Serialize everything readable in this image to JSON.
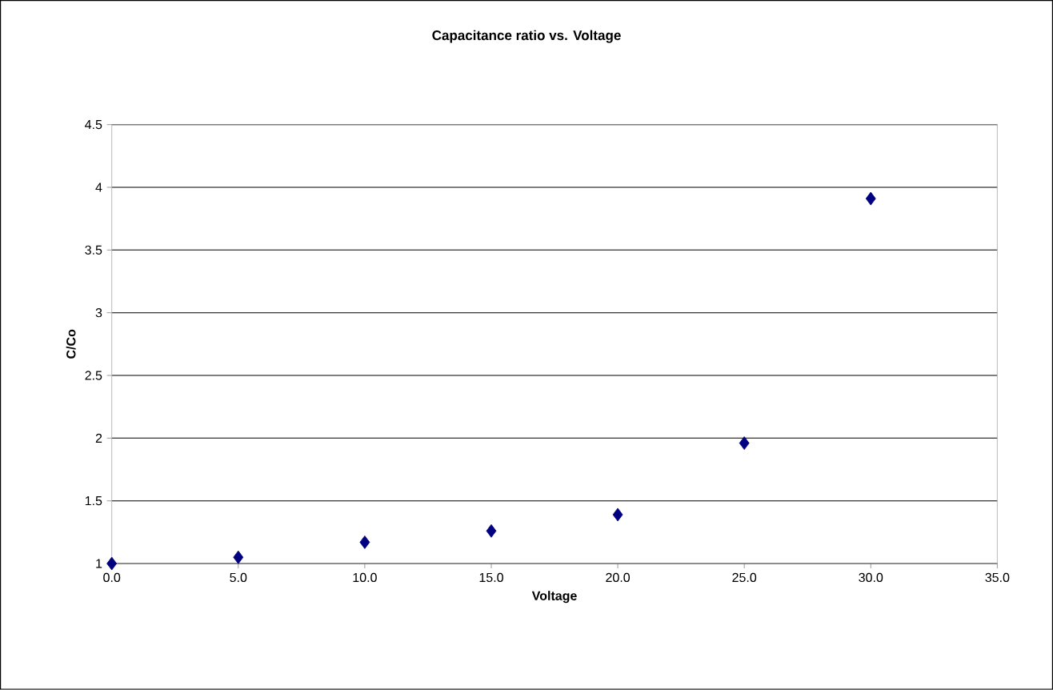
{
  "chart_data": {
    "type": "scatter",
    "title": "Capacitance ratio vs. Voltage",
    "xlabel": "Voltage",
    "ylabel": "C/Co",
    "x": [
      0,
      5,
      10,
      15,
      20,
      25,
      30
    ],
    "values": [
      1.0,
      1.05,
      1.17,
      1.26,
      1.39,
      1.96,
      3.91
    ],
    "color": "#000080",
    "marker": "diamond",
    "grid": "y",
    "xlim": [
      0,
      35
    ],
    "ylim": [
      1,
      4.5
    ],
    "xticks": [
      {
        "value": 0,
        "label": "0.0"
      },
      {
        "value": 5,
        "label": "5.0"
      },
      {
        "value": 10,
        "label": "10.0"
      },
      {
        "value": 15,
        "label": "15.0"
      },
      {
        "value": 20,
        "label": "20.0"
      },
      {
        "value": 25,
        "label": "25.0"
      },
      {
        "value": 30,
        "label": "30.0"
      },
      {
        "value": 35,
        "label": "35.0"
      }
    ],
    "yticks": [
      1,
      1.5,
      2,
      2.5,
      3,
      3.5,
      4,
      4.5
    ]
  }
}
